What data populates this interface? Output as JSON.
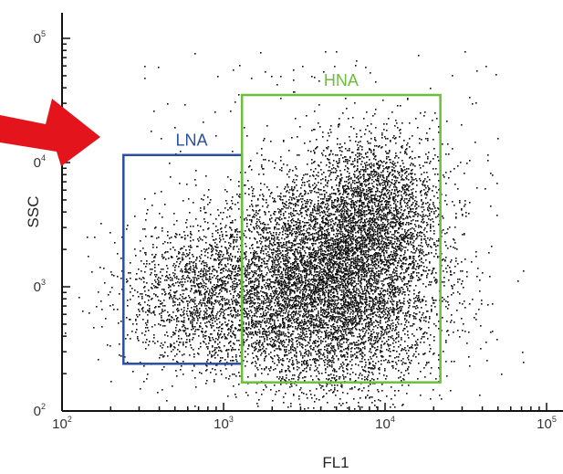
{
  "chart_data": {
    "type": "scatter",
    "title": "",
    "xlabel": "FL1",
    "ylabel": "SSC",
    "xscale": "log",
    "yscale": "log",
    "xlim": [
      100,
      100000
    ],
    "ylim": [
      100,
      100000
    ],
    "x_ticks": [
      {
        "base": "10",
        "exp": "2",
        "value": 100
      },
      {
        "base": "10",
        "exp": "3",
        "value": 1000
      },
      {
        "base": "10",
        "exp": "4",
        "value": 10000
      },
      {
        "base": "10",
        "exp": "5",
        "value": 100000
      }
    ],
    "y_ticks": [
      {
        "base": "0",
        "exp": "2",
        "value": 100
      },
      {
        "base": "0",
        "exp": "3",
        "value": 1000
      },
      {
        "base": "0",
        "exp": "4",
        "value": 10000
      },
      {
        "base": "0",
        "exp": "5",
        "value": 100000
      }
    ],
    "gates": [
      {
        "name": "LNA",
        "color": "#2b4fa0",
        "x_range": [
          240,
          1300
        ],
        "y_range": [
          240,
          11500
        ]
      },
      {
        "name": "HNA",
        "color": "#6cbf3b",
        "x_range": [
          1300,
          22000
        ],
        "y_range": [
          170,
          35000
        ]
      }
    ],
    "populations": [
      {
        "name": "LNA",
        "center": [
          820,
          850
        ],
        "spread_log": [
          0.28,
          0.3
        ],
        "approx_events": 1900
      },
      {
        "name": "HNA",
        "center": [
          4500,
          1100
        ],
        "spread_log": [
          0.32,
          0.42
        ],
        "approx_events": 7500
      },
      {
        "name": "HNA",
        "center": [
          9000,
          4500
        ],
        "spread_log": [
          0.2,
          0.3
        ],
        "approx_events": 1800
      }
    ],
    "event_color": "#111111",
    "annotation": {
      "type": "arrow",
      "color": "#e3141b",
      "points_to": "LNA"
    },
    "grid": false,
    "legend": "none"
  }
}
